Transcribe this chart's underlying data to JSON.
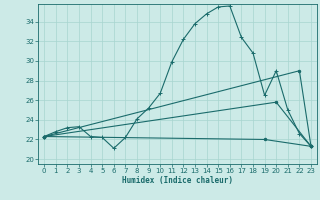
{
  "xlabel": "Humidex (Indice chaleur)",
  "bg_color": "#cceae7",
  "line_color": "#1a6b6b",
  "grid_color": "#a8d5d0",
  "xlim": [
    -0.5,
    23.5
  ],
  "ylim": [
    19.5,
    35.8
  ],
  "xticks": [
    0,
    1,
    2,
    3,
    4,
    5,
    6,
    7,
    8,
    9,
    10,
    11,
    12,
    13,
    14,
    15,
    16,
    17,
    18,
    19,
    20,
    21,
    22,
    23
  ],
  "yticks": [
    20,
    22,
    24,
    26,
    28,
    30,
    32,
    34
  ],
  "line1": {
    "x": [
      0,
      1,
      2,
      3,
      4,
      5,
      6,
      7,
      8,
      9,
      10,
      11,
      12,
      13,
      14,
      15,
      16,
      17,
      18,
      19,
      20,
      21,
      22,
      23
    ],
    "y": [
      22.3,
      22.8,
      23.2,
      23.3,
      22.3,
      22.2,
      21.1,
      22.2,
      24.1,
      25.2,
      26.7,
      29.9,
      32.2,
      33.8,
      34.8,
      35.5,
      35.6,
      32.4,
      30.8,
      26.5,
      29.0,
      25.0,
      22.6,
      21.3
    ]
  },
  "line2": {
    "x": [
      0,
      22,
      23
    ],
    "y": [
      22.3,
      29.0,
      21.3
    ]
  },
  "line3": {
    "x": [
      0,
      19,
      23
    ],
    "y": [
      22.3,
      22.0,
      21.3
    ]
  },
  "line4": {
    "x": [
      0,
      20,
      23
    ],
    "y": [
      22.3,
      25.8,
      21.3
    ]
  }
}
